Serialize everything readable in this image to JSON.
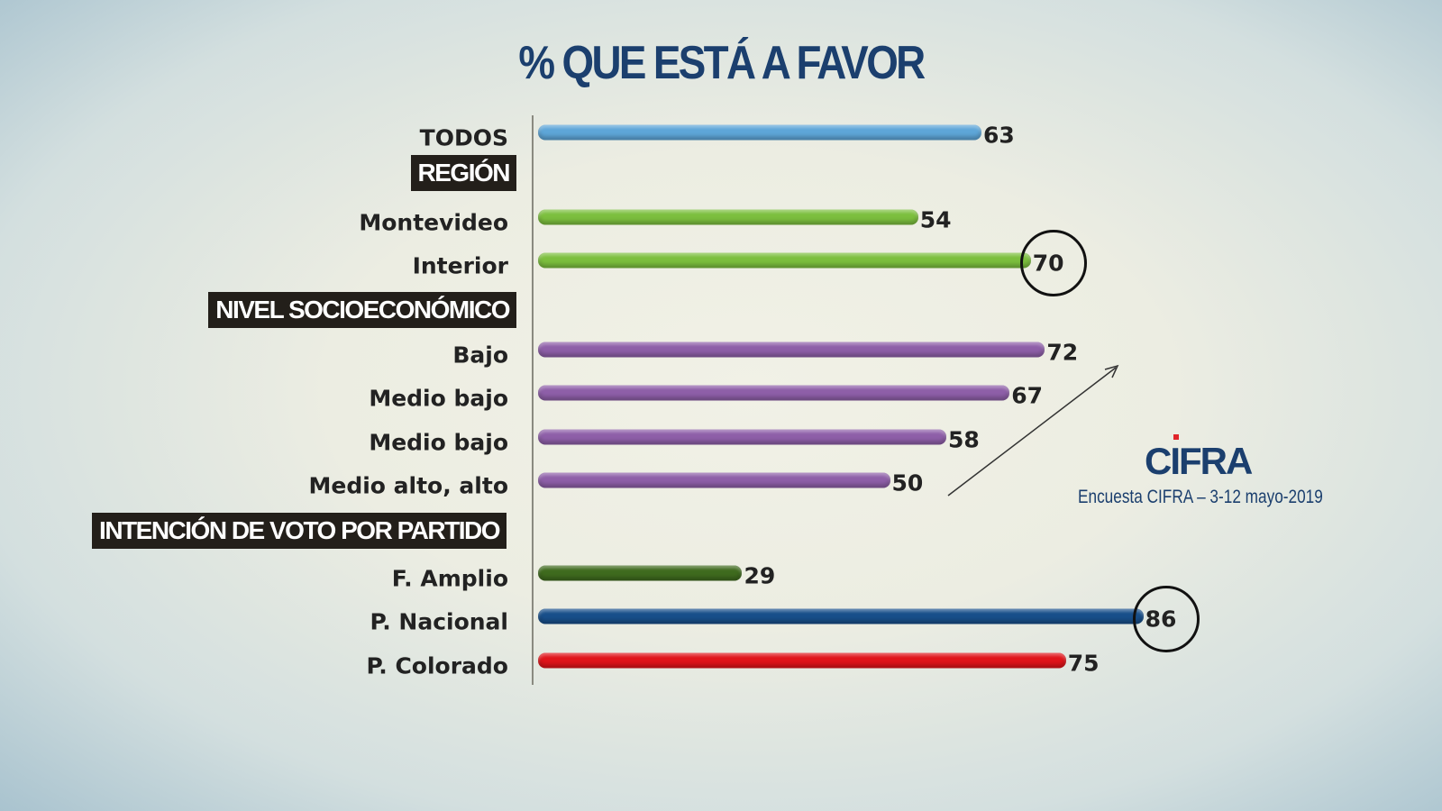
{
  "chart_data": {
    "type": "bar",
    "orientation": "horizontal",
    "title": "% QUE ESTÁ A FAVOR",
    "xlim": [
      0,
      100
    ],
    "items": [
      {
        "kind": "bar",
        "label": "TODOS",
        "value": 63,
        "color": "#5ea6d8"
      },
      {
        "kind": "section",
        "label": "REGIÓN"
      },
      {
        "kind": "bar",
        "label": "Montevideo",
        "value": 54,
        "color": "#7cbf3e"
      },
      {
        "kind": "bar",
        "label": "Interior",
        "value": 70,
        "color": "#7cbf3e",
        "circled": true
      },
      {
        "kind": "section",
        "label": "NIVEL SOCIOECONÓMICO"
      },
      {
        "kind": "bar",
        "label": "Bajo",
        "value": 72,
        "color": "#8e5fa8"
      },
      {
        "kind": "bar",
        "label": "Medio bajo",
        "value": 67,
        "color": "#8e5fa8"
      },
      {
        "kind": "bar",
        "label": "Medio bajo",
        "value": 58,
        "color": "#8e5fa8"
      },
      {
        "kind": "bar",
        "label": "Medio alto, alto",
        "value": 50,
        "color": "#8e5fa8"
      },
      {
        "kind": "section",
        "label": "INTENCIÓN DE VOTO POR PARTIDO"
      },
      {
        "kind": "bar",
        "label": "F. Amplio",
        "value": 29,
        "color": "#3f6b1e"
      },
      {
        "kind": "bar",
        "label": "P. Nacional",
        "value": 86,
        "color": "#184f8a",
        "circled": true
      },
      {
        "kind": "bar",
        "label": "P. Colorado",
        "value": 75,
        "color": "#e0141a"
      }
    ]
  },
  "logo_text": "CIFRA",
  "source": "Encuesta CIFRA – 3-12 mayo-2019"
}
